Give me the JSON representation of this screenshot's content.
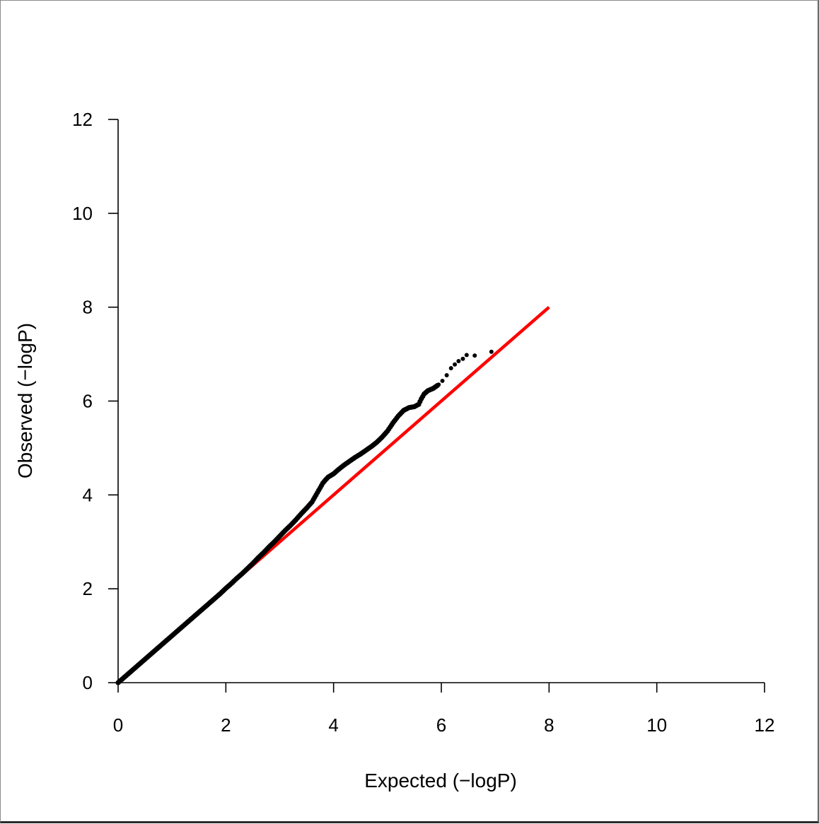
{
  "chart_data": {
    "type": "scatter",
    "title": "",
    "xlabel": "Expected (−logP)",
    "ylabel": "Observed (−logP)",
    "xlim": [
      0,
      12
    ],
    "ylim": [
      0,
      12
    ],
    "x_ticks": [
      "0",
      "2",
      "4",
      "6",
      "8",
      "10",
      "12"
    ],
    "y_ticks": [
      "0",
      "2",
      "4",
      "6",
      "8",
      "10",
      "12"
    ],
    "grid": false,
    "legend": "none",
    "reference_line": {
      "from": [
        0,
        0
      ],
      "to": [
        8,
        8
      ],
      "color": "#ff0000"
    },
    "point_color": "#000000",
    "series": [
      {
        "name": "",
        "type": "scatter",
        "points": [
          [
            0.0,
            0.0
          ],
          [
            0.05,
            0.05
          ],
          [
            0.1,
            0.1
          ],
          [
            0.2,
            0.2
          ],
          [
            0.3,
            0.3
          ],
          [
            0.4,
            0.4
          ],
          [
            0.5,
            0.5
          ],
          [
            0.6,
            0.6
          ],
          [
            0.7,
            0.7
          ],
          [
            0.8,
            0.8
          ],
          [
            0.9,
            0.9
          ],
          [
            1.0,
            1.0
          ],
          [
            1.1,
            1.1
          ],
          [
            1.2,
            1.2
          ],
          [
            1.3,
            1.3
          ],
          [
            1.4,
            1.4
          ],
          [
            1.5,
            1.5
          ],
          [
            1.6,
            1.6
          ],
          [
            1.7,
            1.7
          ],
          [
            1.8,
            1.8
          ],
          [
            1.9,
            1.9
          ],
          [
            2.0,
            2.01
          ],
          [
            2.1,
            2.11
          ],
          [
            2.2,
            2.22
          ],
          [
            2.3,
            2.32
          ],
          [
            2.4,
            2.43
          ],
          [
            2.5,
            2.54
          ],
          [
            2.6,
            2.66
          ],
          [
            2.7,
            2.77
          ],
          [
            2.8,
            2.89
          ],
          [
            2.9,
            3.0
          ],
          [
            3.0,
            3.12
          ],
          [
            3.1,
            3.24
          ],
          [
            3.2,
            3.35
          ],
          [
            3.3,
            3.47
          ],
          [
            3.4,
            3.6
          ],
          [
            3.5,
            3.72
          ],
          [
            3.6,
            3.85
          ],
          [
            3.65,
            3.95
          ],
          [
            3.7,
            4.05
          ],
          [
            3.75,
            4.15
          ],
          [
            3.8,
            4.25
          ],
          [
            3.85,
            4.32
          ],
          [
            3.9,
            4.38
          ],
          [
            4.0,
            4.45
          ],
          [
            4.1,
            4.55
          ],
          [
            4.2,
            4.64
          ],
          [
            4.3,
            4.72
          ],
          [
            4.4,
            4.8
          ],
          [
            4.5,
            4.87
          ],
          [
            4.6,
            4.95
          ],
          [
            4.7,
            5.03
          ],
          [
            4.8,
            5.12
          ],
          [
            4.9,
            5.23
          ],
          [
            5.0,
            5.36
          ],
          [
            5.1,
            5.53
          ],
          [
            5.2,
            5.68
          ],
          [
            5.3,
            5.8
          ],
          [
            5.4,
            5.86
          ],
          [
            5.5,
            5.88
          ],
          [
            5.58,
            5.93
          ],
          [
            5.63,
            6.05
          ],
          [
            5.68,
            6.15
          ],
          [
            5.75,
            6.22
          ],
          [
            5.85,
            6.27
          ],
          [
            5.95,
            6.35
          ],
          [
            6.02,
            6.43
          ],
          [
            6.1,
            6.55
          ],
          [
            6.18,
            6.7
          ],
          [
            6.25,
            6.78
          ],
          [
            6.32,
            6.85
          ],
          [
            6.4,
            6.9
          ],
          [
            6.47,
            6.98
          ],
          [
            6.62,
            6.97
          ],
          [
            6.93,
            7.05
          ]
        ]
      }
    ]
  }
}
